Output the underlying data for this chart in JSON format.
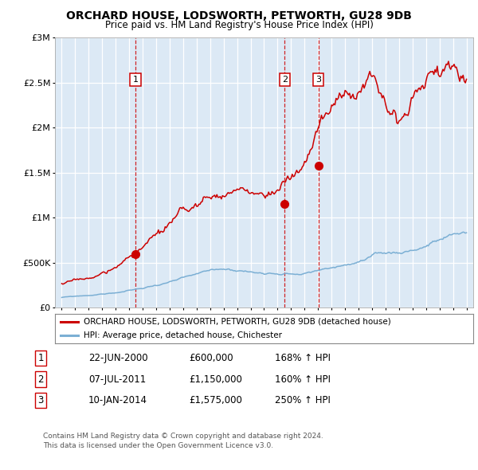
{
  "title": "ORCHARD HOUSE, LODSWORTH, PETWORTH, GU28 9DB",
  "subtitle": "Price paid vs. HM Land Registry's House Price Index (HPI)",
  "x_start_year": 1995,
  "x_end_year": 2025,
  "y_min": 0,
  "y_max": 3000000,
  "y_ticks": [
    0,
    500000,
    1000000,
    1500000,
    2000000,
    2500000,
    3000000
  ],
  "y_tick_labels": [
    "£0",
    "£500K",
    "£1M",
    "£1.5M",
    "£2M",
    "£2.5M",
    "£3M"
  ],
  "red_line_color": "#cc0000",
  "blue_line_color": "#7bafd4",
  "sale_points": [
    {
      "year_decimal": 2000.47,
      "value": 600000,
      "label": "1"
    },
    {
      "year_decimal": 2011.52,
      "value": 1150000,
      "label": "2"
    },
    {
      "year_decimal": 2014.03,
      "value": 1575000,
      "label": "3"
    }
  ],
  "annotation_box_color": "#cc0000",
  "dashed_line_color": "#cc0000",
  "bg_color": "#dce9f5",
  "grid_color": "#ffffff",
  "legend_entries": [
    "ORCHARD HOUSE, LODSWORTH, PETWORTH, GU28 9DB (detached house)",
    "HPI: Average price, detached house, Chichester"
  ],
  "table_rows": [
    {
      "num": "1",
      "date": "22-JUN-2000",
      "price": "£600,000",
      "hpi": "168% ↑ HPI"
    },
    {
      "num": "2",
      "date": "07-JUL-2011",
      "price": "£1,150,000",
      "hpi": "160% ↑ HPI"
    },
    {
      "num": "3",
      "date": "10-JAN-2014",
      "price": "£1,575,000",
      "hpi": "250% ↑ HPI"
    }
  ],
  "footnote": "Contains HM Land Registry data © Crown copyright and database right 2024.\nThis data is licensed under the Open Government Licence v3.0."
}
